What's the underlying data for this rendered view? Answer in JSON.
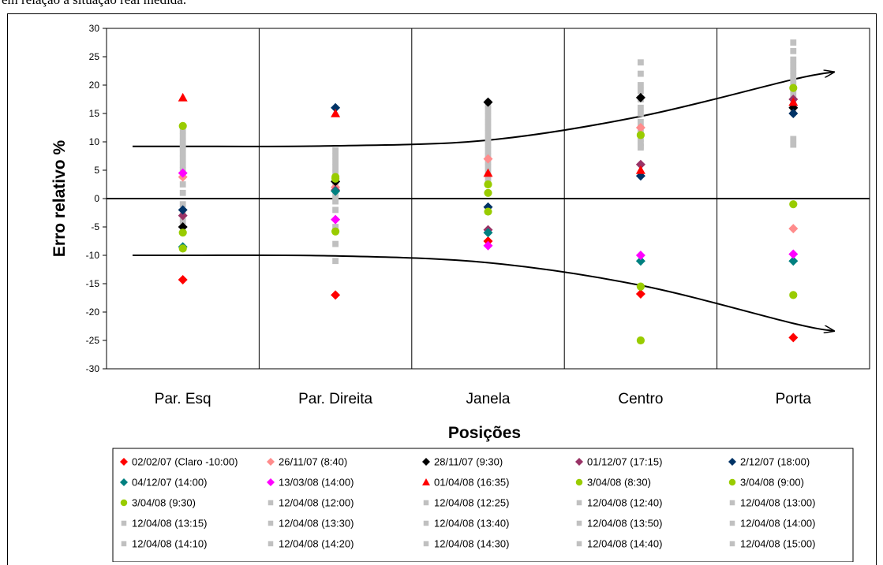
{
  "page": {
    "caption_fragment": "em relação à situação real medida."
  },
  "chart_data": {
    "type": "scatter",
    "xlabel": "Posições",
    "ylabel": "Erro relativo %",
    "categories": [
      "Par. Esq",
      "Par. Direita",
      "Janela",
      "Centro",
      "Porta"
    ],
    "ylim": [
      -30,
      30
    ],
    "yticks": [
      30,
      25,
      20,
      15,
      10,
      5,
      0,
      -5,
      -10,
      -15,
      -20,
      -25,
      -30
    ],
    "grid": "vertical category separators",
    "legend_position": "bottom",
    "series": [
      {
        "name": "02/02/07 (Claro -10:00)",
        "marker": "diamond",
        "color": "#ff0000",
        "values": [
          -14.3,
          -17,
          -7.5,
          -16.8,
          -24.5
        ]
      },
      {
        "name": "26/11/07 (8:40)",
        "marker": "diamond",
        "color": "#ff8c8c",
        "values": [
          3.8,
          2,
          7,
          12.5,
          -5.3
        ]
      },
      {
        "name": "28/11/07 (9:30)",
        "marker": "diamond",
        "color": "#000000",
        "values": [
          -5,
          3,
          17,
          17.8,
          16
        ]
      },
      {
        "name": "01/12/07 (17:15)",
        "marker": "diamond",
        "color": "#993366",
        "values": [
          -3,
          1.5,
          -5.5,
          6,
          17.5
        ]
      },
      {
        "name": "2/12/07 (18:00)",
        "marker": "diamond",
        "color": "#003366",
        "values": [
          -2,
          16,
          -1.5,
          4,
          15
        ]
      },
      {
        "name": "04/12/07 (14:00)",
        "marker": "diamond",
        "color": "#008080",
        "values": [
          -8.5,
          1.3,
          -6,
          -11,
          -11
        ]
      },
      {
        "name": "13/03/08 (14:00)",
        "marker": "diamond",
        "color": "#ff00ff",
        "values": [
          4.5,
          -3.7,
          -8.3,
          -10,
          -9.8
        ]
      },
      {
        "name": "01/04/08 (16:35)",
        "marker": "triangle",
        "color": "#ff0000",
        "values": [
          17.8,
          15,
          4.5,
          5,
          17
        ]
      },
      {
        "name": "3/04/08 (8:30)",
        "marker": "circle",
        "color": "#99cc00",
        "values": [
          12.8,
          3.5,
          2.5,
          11.2,
          -1
        ]
      },
      {
        "name": "3/04/08 (9:00)",
        "marker": "circle",
        "color": "#99cc00",
        "values": [
          -6,
          -5.8,
          -2.3,
          -15.5,
          -17
        ]
      },
      {
        "name": "3/04/08 (9:30)",
        "marker": "circle",
        "color": "#99cc00",
        "values": [
          -8.8,
          3.8,
          1,
          -25,
          19.5
        ]
      },
      {
        "name": "12/04/08 (12:00)",
        "marker": "square",
        "color": "#c0c0c0",
        "values": [
          12,
          8.5,
          16.5,
          24,
          27.5
        ]
      },
      {
        "name": "12/04/08 (12:25)",
        "marker": "square",
        "color": "#c0c0c0",
        "values": [
          11,
          7.5,
          15.5,
          22,
          26
        ]
      },
      {
        "name": "12/04/08 (12:40)",
        "marker": "square",
        "color": "#c0c0c0",
        "values": [
          10,
          6.5,
          14.5,
          20,
          24.5
        ]
      },
      {
        "name": "12/04/08 (13:00)",
        "marker": "square",
        "color": "#c0c0c0",
        "values": [
          9,
          5.5,
          13.5,
          19,
          23.5
        ]
      },
      {
        "name": "12/04/08 (13:15)",
        "marker": "square",
        "color": "#c0c0c0",
        "values": [
          8,
          4.5,
          12.5,
          17.5,
          22.5
        ]
      },
      {
        "name": "12/04/08 (13:30)",
        "marker": "square",
        "color": "#c0c0c0",
        "values": [
          7,
          3.5,
          11.5,
          16,
          21.5
        ]
      },
      {
        "name": "12/04/08 (13:40)",
        "marker": "square",
        "color": "#c0c0c0",
        "values": [
          6,
          2.5,
          10.5,
          15,
          20.5
        ]
      },
      {
        "name": "12/04/08 (13:50)",
        "marker": "square",
        "color": "#c0c0c0",
        "values": [
          5,
          1.5,
          9.5,
          13.5,
          19.5
        ]
      },
      {
        "name": "12/04/08 (14:00)",
        "marker": "square",
        "color": "#c0c0c0",
        "values": [
          4,
          0.5,
          8.5,
          12.5,
          18.5
        ]
      },
      {
        "name": "12/04/08 (14:10)",
        "marker": "square",
        "color": "#c0c0c0",
        "values": [
          2.5,
          -0.5,
          7.5,
          11.5,
          17.5
        ]
      },
      {
        "name": "12/04/08 (14:20)",
        "marker": "square",
        "color": "#c0c0c0",
        "values": [
          1,
          -2,
          6.5,
          10.5,
          16.5
        ]
      },
      {
        "name": "12/04/08 (14:30)",
        "marker": "square",
        "color": "#c0c0c0",
        "values": [
          -1,
          -5,
          5.5,
          9.8,
          15.5
        ]
      },
      {
        "name": "12/04/08 (14:40)",
        "marker": "square",
        "color": "#c0c0c0",
        "values": [
          -2.5,
          -8,
          4.5,
          9.2,
          10.5
        ]
      },
      {
        "name": "12/04/08 (15:00)",
        "marker": "square",
        "color": "#c0c0c0",
        "values": [
          -4,
          -11,
          3.5,
          9,
          9.5
        ]
      }
    ],
    "annotations": [
      {
        "kind": "arrow",
        "description": "upper envelope",
        "values": [
          9.2,
          9.3,
          10.3,
          14.5,
          21
        ]
      },
      {
        "kind": "arrow",
        "description": "lower envelope",
        "values": [
          -10,
          -10.1,
          -11.3,
          -15.3,
          -22
        ]
      }
    ]
  }
}
